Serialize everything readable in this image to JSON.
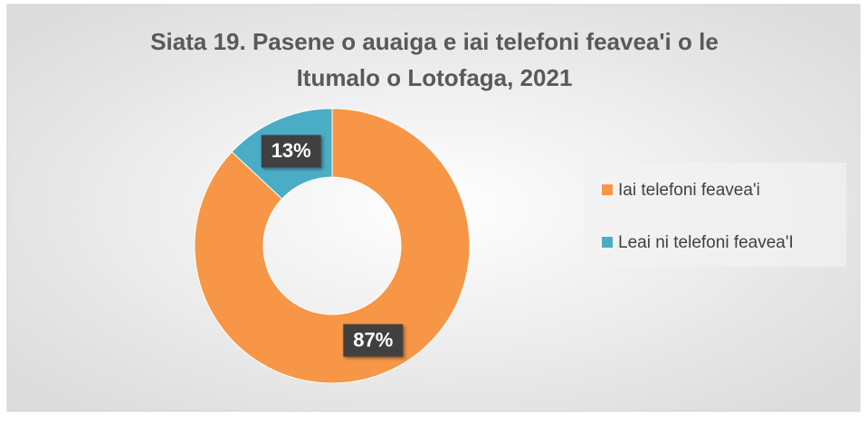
{
  "chart_data": {
    "type": "donut",
    "title": "Siata 19. Pasene o auaiga e iai telefoni feavea'i o le Itumalo o Lotofaga, 2021",
    "title_lines": [
      "Siata 19. Pasene o auaiga e iai telefoni feavea'i o le",
      "Itumalo o Lotofaga, 2021"
    ],
    "categories": [
      "Iai telefoni feavea'i",
      "Leai ni telefoni feavea'I"
    ],
    "values": [
      87,
      13
    ],
    "value_labels": [
      "87%",
      "13%"
    ],
    "colors": [
      "#F79646",
      "#4BACC6"
    ],
    "legend": "right"
  }
}
